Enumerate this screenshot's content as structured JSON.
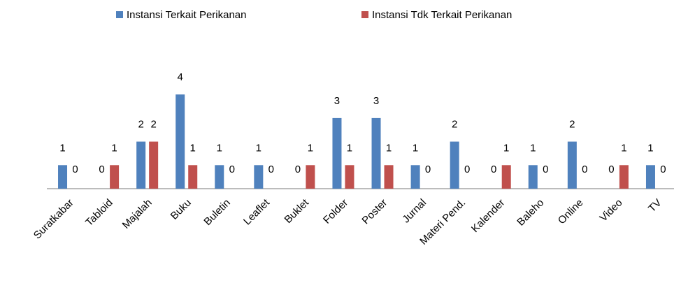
{
  "chart_data": {
    "type": "bar",
    "categories": [
      "Suratkabar",
      "Tabloid",
      "Majalah",
      "Buku",
      "Buletin",
      "Leaflet",
      "Buklet",
      "Folder",
      "Poster",
      "Jurnal",
      "Materi Pend.",
      "Kalender",
      "Baleho",
      "Online",
      "Video",
      "TV"
    ],
    "series": [
      {
        "name": "Instansi Terkait Perikanan",
        "color": "#4f81bd",
        "values": [
          1,
          0,
          2,
          4,
          1,
          1,
          0,
          3,
          3,
          1,
          2,
          0,
          1,
          2,
          0,
          1
        ]
      },
      {
        "name": "Instansi Tdk Terkait Perikanan",
        "color": "#c0504d",
        "values": [
          0,
          1,
          2,
          1,
          0,
          0,
          1,
          1,
          1,
          0,
          0,
          1,
          0,
          0,
          1,
          0
        ]
      }
    ],
    "legend": "top"
  }
}
